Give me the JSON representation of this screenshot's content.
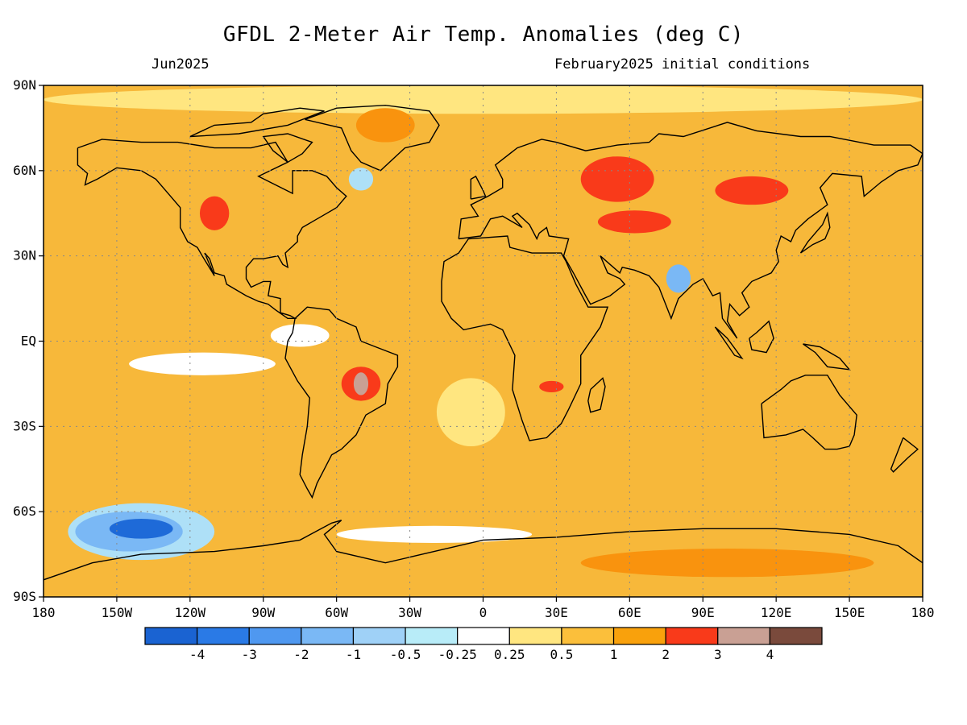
{
  "header": {
    "title": "GFDL 2-Meter Air Temp. Anomalies (deg C)",
    "valid_month": "Jun2025",
    "init_conditions": "February2025 initial conditions"
  },
  "map": {
    "projection": "equirectangular",
    "lat_ticks": [
      {
        "lat": 90,
        "label": "90N"
      },
      {
        "lat": 60,
        "label": "60N"
      },
      {
        "lat": 30,
        "label": "30N"
      },
      {
        "lat": 0,
        "label": "EQ"
      },
      {
        "lat": -30,
        "label": "30S"
      },
      {
        "lat": -60,
        "label": "60S"
      },
      {
        "lat": -90,
        "label": "90S"
      }
    ],
    "lon_ticks": [
      {
        "lon": -180,
        "label": "180"
      },
      {
        "lon": -150,
        "label": "150W"
      },
      {
        "lon": -120,
        "label": "120W"
      },
      {
        "lon": -90,
        "label": "90W"
      },
      {
        "lon": -60,
        "label": "60W"
      },
      {
        "lon": -30,
        "label": "30W"
      },
      {
        "lon": 0,
        "label": "0"
      },
      {
        "lon": 30,
        "label": "30E"
      },
      {
        "lon": 60,
        "label": "60E"
      },
      {
        "lon": 90,
        "label": "90E"
      },
      {
        "lon": 120,
        "label": "120E"
      },
      {
        "lon": 150,
        "label": "150E"
      },
      {
        "lon": 180,
        "label": "180"
      }
    ],
    "background_color": "#f7b83a",
    "anomaly_regions": [
      {
        "name": "south-pacific-cold",
        "lon": -145,
        "lat": -67,
        "rlon": 22,
        "rlat": 7,
        "color": "#7ab8f5"
      },
      {
        "name": "south-pacific-cold-core",
        "lon": -140,
        "lat": -66,
        "rlon": 13,
        "rlat": 3.5,
        "color": "#1e6ad8"
      },
      {
        "name": "south-pacific-cold-outer",
        "lon": -140,
        "lat": -67,
        "rlon": 30,
        "rlat": 10,
        "color": "#aee0f7"
      },
      {
        "name": "equatorial-pacific-neutral",
        "lon": -115,
        "lat": -8,
        "rlon": 30,
        "rlat": 4,
        "color": "#ffffff"
      },
      {
        "name": "equatorial-east-pacific-neutral",
        "lon": -75,
        "lat": 2,
        "rlon": 12,
        "rlat": 4,
        "color": "#ffffff"
      },
      {
        "name": "south-atlantic-neutral",
        "lon": -5,
        "lat": -25,
        "rlon": 14,
        "rlat": 12,
        "color": "#ffe680"
      },
      {
        "name": "southern-ocean-neutral",
        "lon": -20,
        "lat": -68,
        "rlon": 40,
        "rlat": 3,
        "color": "#ffffff"
      },
      {
        "name": "arctic-neutral",
        "lon": 0,
        "lat": 85,
        "rlon": 180,
        "rlat": 5,
        "color": "#ffe680"
      },
      {
        "name": "labrador-sea-cool",
        "lon": -50,
        "lat": 57,
        "rlon": 5,
        "rlat": 4,
        "color": "#aee0f7"
      },
      {
        "name": "india-cool",
        "lon": 80,
        "lat": 22,
        "rlon": 5,
        "rlat": 5,
        "color": "#7ab8f5"
      },
      {
        "name": "greenland-warm",
        "lon": -40,
        "lat": 76,
        "rlon": 12,
        "rlat": 6,
        "color": "#f9930e"
      },
      {
        "name": "siberia-warm",
        "lon": 55,
        "lat": 57,
        "rlon": 15,
        "rlat": 8,
        "color": "#f93a1a"
      },
      {
        "name": "central-asia-warm",
        "lon": 62,
        "lat": 42,
        "rlon": 15,
        "rlat": 4,
        "color": "#f93a1a"
      },
      {
        "name": "east-asia-warm",
        "lon": 110,
        "lat": 53,
        "rlon": 15,
        "rlat": 5,
        "color": "#f93a1a"
      },
      {
        "name": "west-north-america-warm",
        "lon": -110,
        "lat": 45,
        "rlon": 6,
        "rlat": 6,
        "color": "#f93a1a"
      },
      {
        "name": "brazil-warm",
        "lon": -50,
        "lat": -15,
        "rlon": 8,
        "rlat": 6,
        "color": "#f93a1a"
      },
      {
        "name": "brazil-warm-core",
        "lon": -50,
        "lat": -15,
        "rlon": 3,
        "rlat": 4,
        "color": "#c9a094"
      },
      {
        "name": "southern-africa-warm",
        "lon": 28,
        "lat": -16,
        "rlon": 5,
        "rlat": 2,
        "color": "#f93a1a"
      },
      {
        "name": "antarctic-coast-warm",
        "lon": 100,
        "lat": -78,
        "rlon": 60,
        "rlat": 5,
        "color": "#f9930e"
      }
    ]
  },
  "colorbar": {
    "segments": [
      {
        "color": "#1a63d2",
        "label": ""
      },
      {
        "color": "#2a7ae6",
        "label": "-4"
      },
      {
        "color": "#4f98f0",
        "label": "-3"
      },
      {
        "color": "#7ab8f5",
        "label": "-2"
      },
      {
        "color": "#9fd1f7",
        "label": "-1"
      },
      {
        "color": "#b8ecf8",
        "label": "-0.5"
      },
      {
        "color": "#ffffff",
        "label": "-0.25"
      },
      {
        "color": "#ffe680",
        "label": "0.25"
      },
      {
        "color": "#fbbf3b",
        "label": "0.5"
      },
      {
        "color": "#f9a10c",
        "label": "1"
      },
      {
        "color": "#f93a1a",
        "label": "2"
      },
      {
        "color": "#c9a094",
        "label": "3"
      },
      {
        "color": "#7a4a3c",
        "label": "4"
      }
    ]
  }
}
